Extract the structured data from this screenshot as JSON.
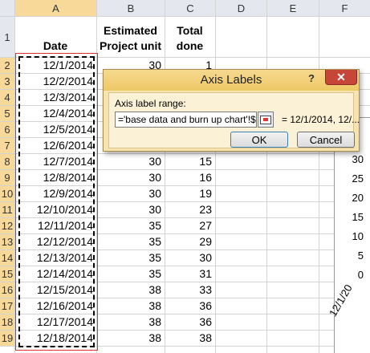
{
  "sheet": {
    "columns": [
      "A",
      "B",
      "C",
      "D",
      "E",
      "F"
    ],
    "row_numbers": [
      1,
      2,
      3,
      4,
      5,
      6,
      7,
      8,
      9,
      10,
      11,
      12,
      13,
      14,
      15,
      16,
      17,
      18,
      19
    ],
    "headers": [
      "Date",
      "Estimated Project unit",
      "Total done"
    ],
    "rows": [
      [
        "12/1/2014",
        30,
        1
      ],
      [
        "12/2/2014"
      ],
      [
        "12/3/2014"
      ],
      [
        "12/4/2014"
      ],
      [
        "12/5/2014"
      ],
      [
        "12/6/2014"
      ],
      [
        "12/7/2014",
        30,
        15
      ],
      [
        "12/8/2014",
        30,
        16
      ],
      [
        "12/9/2014",
        30,
        19
      ],
      [
        "12/10/2014",
        30,
        23
      ],
      [
        "12/11/2014",
        35,
        27
      ],
      [
        "12/12/2014",
        35,
        29
      ],
      [
        "12/13/2014",
        35,
        30
      ],
      [
        "12/14/2014",
        35,
        31
      ],
      [
        "12/15/2014",
        38,
        33
      ],
      [
        "12/16/2014",
        38,
        36
      ],
      [
        "12/17/2014",
        38,
        36
      ],
      [
        "12/18/2014",
        38,
        38
      ]
    ]
  },
  "chart_fragment": {
    "yticks": [
      30,
      25,
      20,
      15,
      10,
      5,
      0
    ],
    "x_label": "12/1/20"
  },
  "dialog": {
    "title": "Axis Labels",
    "help": "?",
    "range_label": "Axis label range:",
    "range_value": "='base data and burn up chart'!$A$",
    "preview": "= 12/1/2014, 12/...",
    "ok": "OK",
    "cancel": "Cancel"
  }
}
